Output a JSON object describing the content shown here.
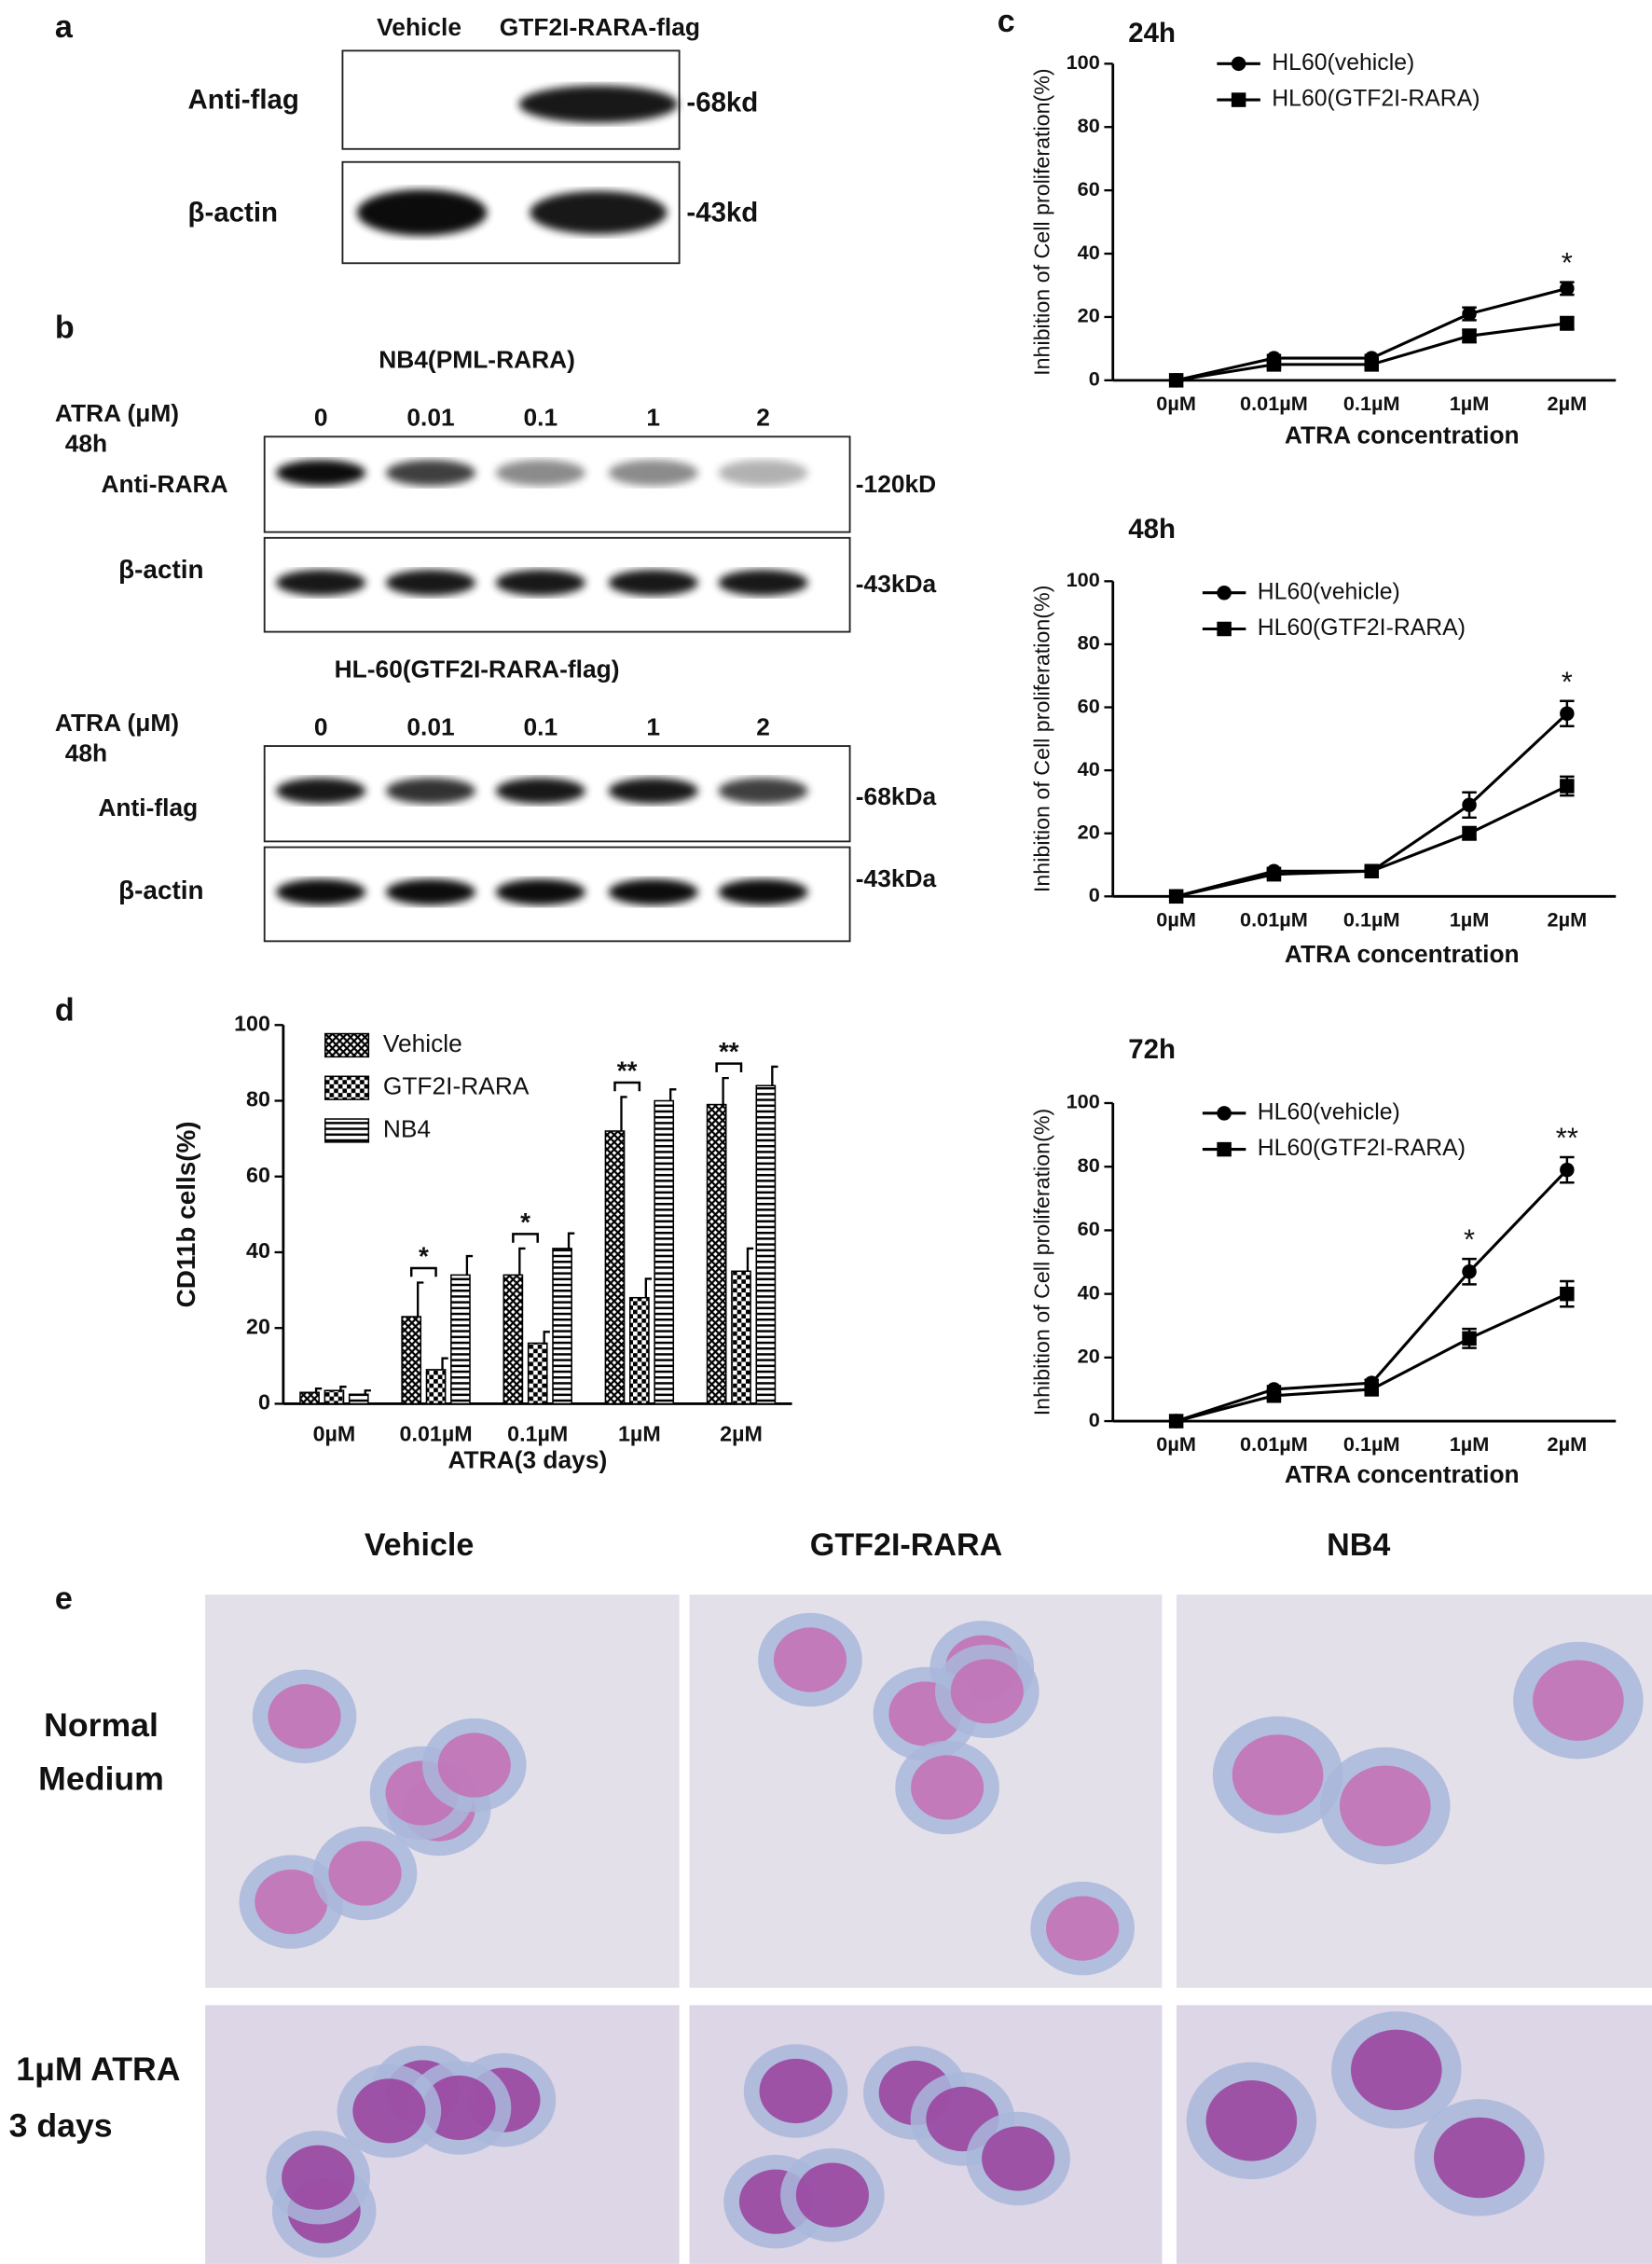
{
  "panel_labels": [
    "a",
    "b",
    "c",
    "d",
    "e"
  ],
  "blot_a": {
    "lanes": [
      "Vehicle",
      "GTF2I-RARA-flag"
    ],
    "rows": [
      "Anti-flag",
      "β-actin"
    ],
    "sizes": [
      "-68kd",
      "-43kd"
    ]
  },
  "blot_b": [
    {
      "title": "NB4(PML-RARA)",
      "treatment": "ATRA (μM)",
      "time": "48h",
      "lanes": [
        "0",
        "0.01",
        "0.1",
        "1",
        "2"
      ],
      "rows": [
        "Anti-RARA",
        "β-actin"
      ],
      "sizes": [
        "-120kD",
        "-43kDa"
      ]
    },
    {
      "title": "HL-60(GTF2I-RARA-flag)",
      "treatment": "ATRA (μM)",
      "time": "48h",
      "lanes": [
        "0",
        "0.01",
        "0.1",
        "1",
        "2"
      ],
      "rows": [
        "Anti-flag",
        "β-actin"
      ],
      "sizes": [
        "-68kDa",
        "-43kDa"
      ]
    }
  ],
  "panel_e": {
    "columns": [
      "Vehicle",
      "GTF2I-RARA",
      "NB4"
    ],
    "rows": [
      [
        "Normal",
        "Medium"
      ],
      [
        "1μM ATRA",
        "3 days"
      ]
    ]
  },
  "chart_data": [
    {
      "type": "line",
      "title": "24h",
      "y_label": "Inhibition of Cell proliferation(%)",
      "x_label": "ATRA concentration",
      "categories": [
        "0µM",
        "0.01µM",
        "0.1µM",
        "1µM",
        "2µM"
      ],
      "ylim": [
        0,
        100
      ],
      "yticks": [
        0,
        20,
        40,
        60,
        80,
        100
      ],
      "annotations": [
        null,
        null,
        null,
        null,
        "*"
      ],
      "series": [
        {
          "name": "HL60(vehicle)",
          "color": "#000000",
          "marker": "circle",
          "values": [
            0,
            7,
            7,
            21,
            29
          ],
          "errors": [
            0,
            1,
            1,
            2,
            2
          ]
        },
        {
          "name": "HL60(GTF2I-RARA)",
          "color": "#000000",
          "marker": "square",
          "values": [
            0,
            5,
            5,
            14,
            18
          ],
          "errors": [
            0,
            1,
            1,
            2,
            2
          ]
        }
      ]
    },
    {
      "type": "line",
      "title": "48h",
      "y_label": "Inhibition of Cell proliferation(%)",
      "x_label": "ATRA concentration",
      "categories": [
        "0µM",
        "0.01µM",
        "0.1µM",
        "1µM",
        "2µM"
      ],
      "ylim": [
        0,
        100
      ],
      "yticks": [
        0,
        20,
        40,
        60,
        80,
        100
      ],
      "annotations": [
        null,
        null,
        null,
        null,
        "*"
      ],
      "series": [
        {
          "name": "HL60(vehicle)",
          "color": "#000000",
          "marker": "circle",
          "values": [
            0,
            8,
            8,
            29,
            58
          ],
          "errors": [
            0,
            1,
            1,
            4,
            4
          ]
        },
        {
          "name": "HL60(GTF2I-RARA)",
          "color": "#000000",
          "marker": "square",
          "values": [
            0,
            7,
            8,
            20,
            35
          ],
          "errors": [
            0,
            1,
            1,
            2,
            3
          ]
        }
      ]
    },
    {
      "type": "line",
      "title": "72h",
      "y_label": "Inhibition of Cell proliferation(%)",
      "x_label": "ATRA concentration",
      "categories": [
        "0µM",
        "0.01µM",
        "0.1µM",
        "1µM",
        "2µM"
      ],
      "ylim": [
        0,
        100
      ],
      "yticks": [
        0,
        20,
        40,
        60,
        80,
        100
      ],
      "annotations": [
        null,
        null,
        null,
        "*",
        "**"
      ],
      "series": [
        {
          "name": "HL60(vehicle)",
          "color": "#000000",
          "marker": "circle",
          "values": [
            0,
            10,
            12,
            47,
            79
          ],
          "errors": [
            0,
            1,
            1,
            4,
            4
          ]
        },
        {
          "name": "HL60(GTF2I-RARA)",
          "color": "#000000",
          "marker": "square",
          "values": [
            0,
            8,
            10,
            26,
            40
          ],
          "errors": [
            0,
            1,
            1,
            3,
            4
          ]
        }
      ]
    },
    {
      "type": "bar",
      "y_label": "CD11b cells(%)",
      "x_label": "ATRA(3 days)",
      "categories": [
        "0µM",
        "0.01µM",
        "0.1µM",
        "1µM",
        "2µM"
      ],
      "ylim": [
        0,
        100
      ],
      "yticks": [
        0,
        20,
        40,
        60,
        80,
        100
      ],
      "annotations": [
        null,
        "*",
        "*",
        "**",
        "**"
      ],
      "series": [
        {
          "name": "Vehicle",
          "color": "#000000",
          "pattern": "crosshatch",
          "values": [
            3,
            23,
            34,
            72,
            79
          ],
          "errors": [
            1,
            9,
            7,
            9,
            7
          ]
        },
        {
          "name": "GTF2I-RARA",
          "color": "#000000",
          "pattern": "checker",
          "values": [
            3.5,
            9,
            16,
            28,
            35
          ],
          "errors": [
            1,
            3,
            3,
            5,
            6
          ]
        },
        {
          "name": "NB4",
          "color": "#000000",
          "pattern": "hstripes",
          "values": [
            2.5,
            34,
            41,
            80,
            84
          ],
          "errors": [
            1,
            5,
            4,
            3,
            5
          ]
        }
      ]
    }
  ]
}
